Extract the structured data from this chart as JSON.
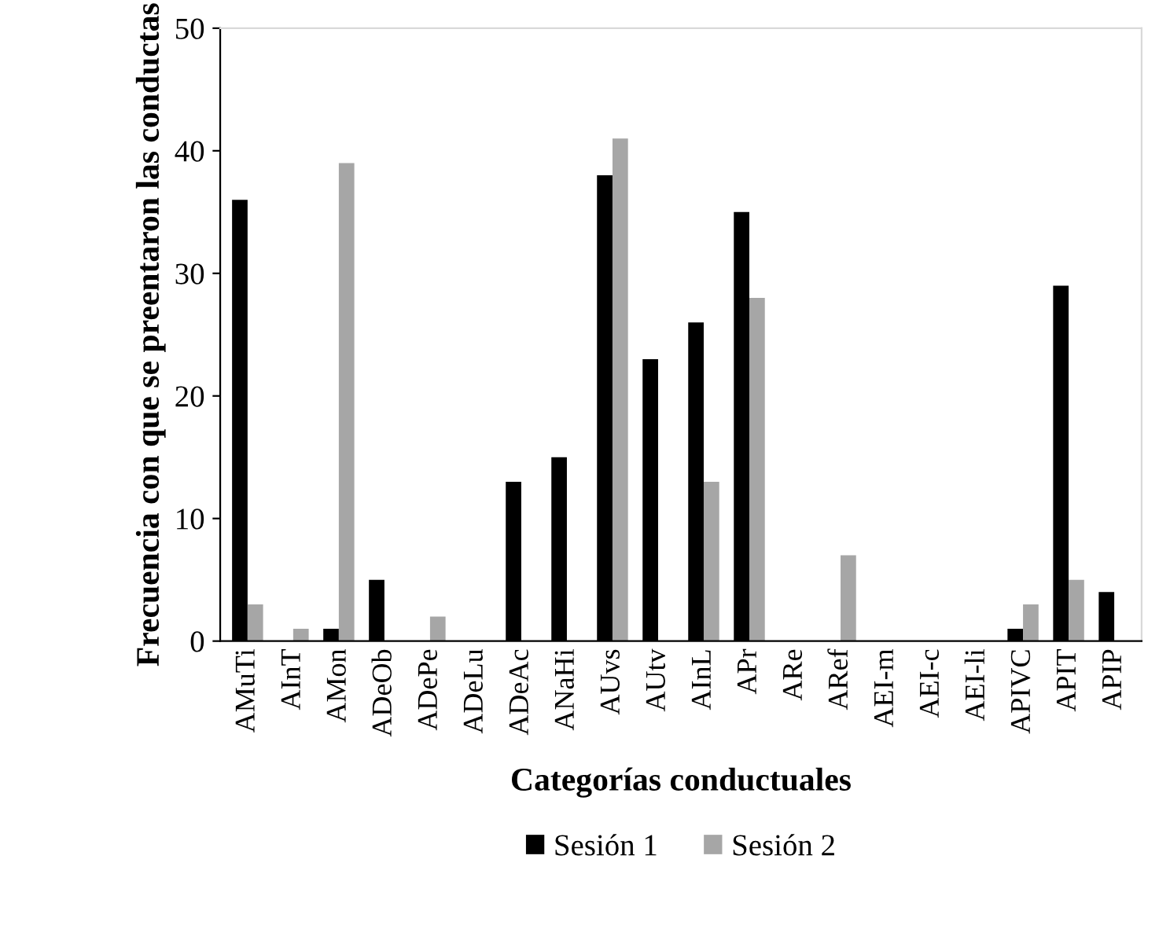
{
  "chart_data": {
    "type": "bar",
    "xlabel": "Categorías conductuales",
    "ylabel": "Frecuencia con que se preentaron las conductas",
    "categories": [
      "AMuTi",
      "AInT",
      "AMon",
      "ADeOb",
      "ADePe",
      "ADeLu",
      "ADeAc",
      "ANaHi",
      "AUvs",
      "AUtv",
      "AInL",
      "APr",
      "ARe",
      "ARef",
      "AEI-m",
      "AEI-c",
      "AEI-li",
      "APIVC",
      "APIT",
      "APIP"
    ],
    "series": [
      {
        "name": "Sesión 1",
        "color": "#000000",
        "values": [
          36,
          0,
          1,
          5,
          0,
          0,
          13,
          15,
          38,
          23,
          26,
          35,
          0,
          0,
          0,
          0,
          0,
          1,
          29,
          4
        ]
      },
      {
        "name": "Sesión 2",
        "color": "#a6a6a6",
        "values": [
          3,
          1,
          39,
          0,
          2,
          0,
          0,
          0,
          41,
          0,
          13,
          28,
          0,
          7,
          0,
          0,
          0,
          3,
          5,
          0
        ]
      }
    ],
    "ylim": [
      0,
      50
    ],
    "yticks": [
      0,
      10,
      20,
      30,
      40,
      50
    ],
    "grid": false,
    "legend": "bottom"
  }
}
